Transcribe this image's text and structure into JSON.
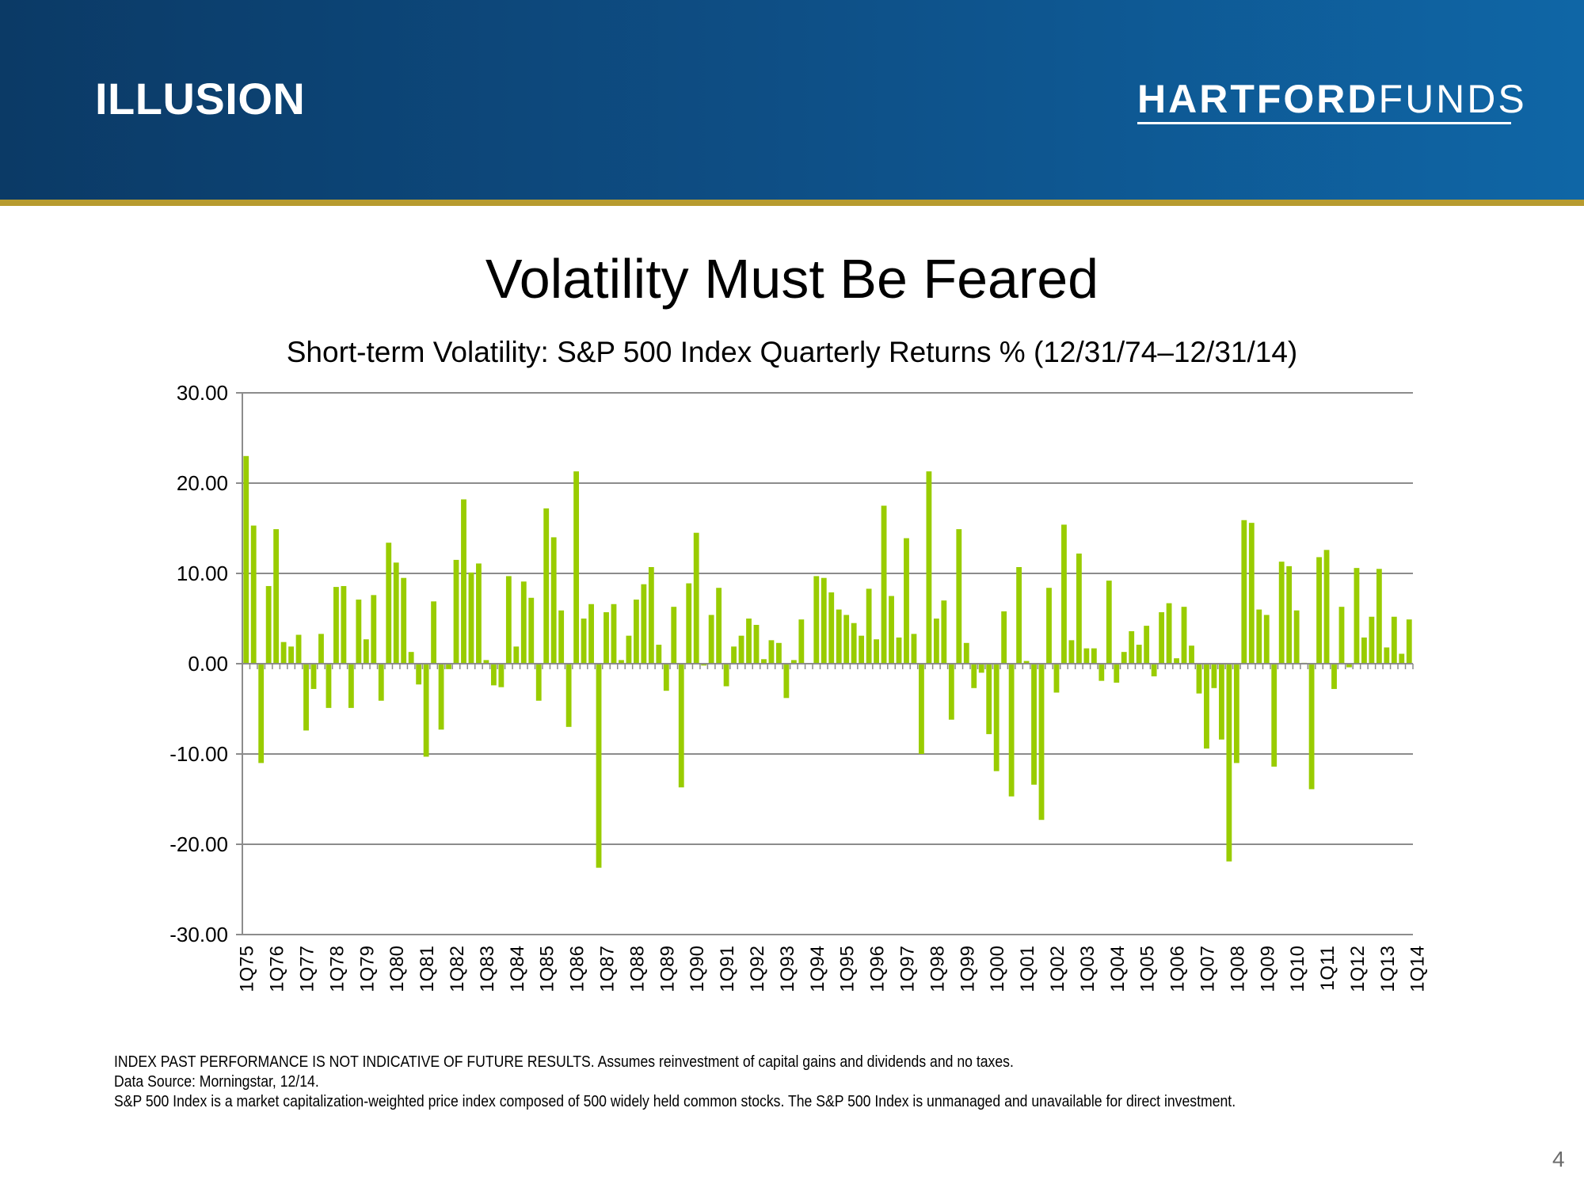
{
  "header": {
    "section_title": "ILLUSION",
    "logo_bold": "HARTFORD",
    "logo_light": "FUNDS"
  },
  "slide_title": "Volatility Must Be Feared",
  "chart_data": {
    "type": "bar",
    "title": "Short-term Volatility: S&P 500 Index Quarterly Returns % (12/31/74–12/31/14)",
    "xlabel": "",
    "ylabel": "",
    "ylim": [
      -30,
      30
    ],
    "yticks": [
      "30.00",
      "20.00",
      "10.00",
      "0.00",
      "-10.00",
      "-20.00",
      "-30.00"
    ],
    "grid": true,
    "bar_color": "#99cc00",
    "x_tick_labels": [
      "1Q75",
      "1Q76",
      "1Q77",
      "1Q78",
      "1Q79",
      "1Q80",
      "1Q81",
      "1Q82",
      "1Q83",
      "1Q84",
      "1Q85",
      "1Q86",
      "1Q87",
      "1Q88",
      "1Q89",
      "1Q90",
      "1Q91",
      "1Q92",
      "1Q93",
      "1Q94",
      "1Q95",
      "1Q96",
      "1Q97",
      "1Q98",
      "1Q99",
      "1Q00",
      "1Q01",
      "1Q02",
      "1Q03",
      "1Q04",
      "1Q05",
      "1Q06",
      "1Q07",
      "1Q08",
      "1Q09",
      "1Q10",
      "1Q11",
      "1Q12",
      "1Q13",
      "1Q14"
    ],
    "series": [
      {
        "values": [
          23.0,
          15.3,
          -11.0,
          8.6,
          14.9,
          2.4,
          1.9,
          3.2,
          -7.4,
          -2.8,
          3.3,
          -4.9,
          8.5,
          8.6,
          -4.9,
          7.1,
          2.7,
          7.6,
          -4.1,
          13.4,
          11.2,
          9.5,
          1.3,
          -2.3,
          -10.3,
          6.9,
          -7.3,
          -0.6,
          11.5,
          18.2,
          10.1,
          11.1,
          0.4,
          -2.4,
          -2.6,
          9.7,
          1.9,
          9.1,
          7.3,
          -4.1,
          17.2,
          14.0,
          5.9,
          -7.0,
          21.3,
          5.0,
          6.6,
          -22.6,
          5.7,
          6.6,
          0.4,
          3.1,
          7.1,
          8.8,
          10.7,
          2.1,
          -3.0,
          6.3,
          -13.7,
          8.9,
          14.5,
          -0.2,
          5.4,
          8.4,
          -2.5,
          1.9,
          3.1,
          5.0,
          4.3,
          0.5,
          2.6,
          2.3,
          -3.8,
          0.4,
          4.9,
          0.0,
          9.7,
          9.5,
          7.9,
          6.0,
          5.4,
          4.5,
          3.1,
          8.3,
          2.7,
          17.5,
          7.5,
          2.9,
          13.9,
          3.3,
          -10.0,
          21.3,
          5.0,
          7.0,
          -6.2,
          14.9,
          2.3,
          -2.7,
          -1.0,
          -7.8,
          -11.9,
          5.8,
          -14.7,
          10.7,
          0.3,
          -13.4,
          -17.3,
          8.4,
          -3.2,
          15.4,
          2.6,
          12.2,
          1.7,
          1.7,
          -1.9,
          9.2,
          -2.1,
          1.3,
          3.6,
          2.1,
          4.2,
          -1.4,
          5.7,
          6.7,
          0.6,
          6.3,
          2.0,
          -3.3,
          -9.4,
          -2.7,
          -8.4,
          -21.9,
          -11.0,
          15.9,
          15.6,
          6.0,
          5.4,
          -11.4,
          11.3,
          10.8,
          5.9,
          0.1,
          -13.9,
          11.8,
          12.6,
          -2.8,
          6.3,
          -0.4,
          10.6,
          2.9,
          5.2,
          10.5,
          1.8,
          5.2,
          1.1,
          4.9
        ]
      }
    ]
  },
  "footnotes": [
    "INDEX PAST PERFORMANCE IS NOT INDICATIVE OF FUTURE RESULTS. Assumes reinvestment of capital gains and dividends and no taxes.",
    "Data Source: Morningstar, 12/14.",
    "S&P 500 Index is a market capitalization-weighted price index composed of 500 widely held common stocks. The S&P 500 Index is unmanaged and unavailable for direct investment."
  ],
  "page_number": "4"
}
